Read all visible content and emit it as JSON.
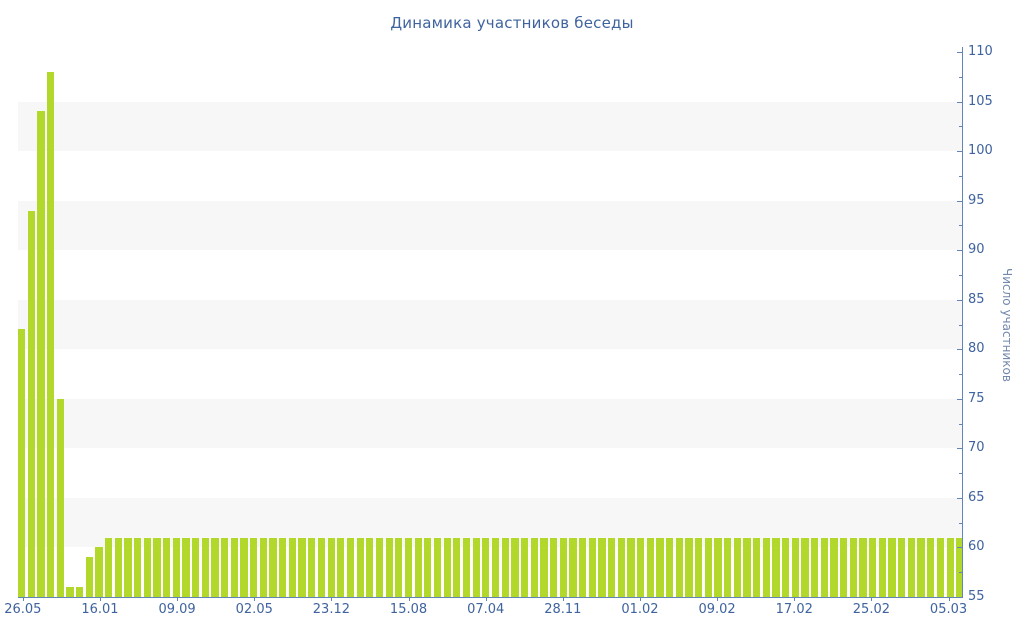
{
  "chart_data": {
    "type": "bar",
    "title": "Динамика участников беседы",
    "ylabel": "Число участников",
    "xlabel": "",
    "ylim": [
      55,
      110
    ],
    "y_tick_step": 5,
    "y_minor_tick_step": 2.5,
    "y_tick_labels": [
      "55",
      "60",
      "65",
      "70",
      "75",
      "80",
      "85",
      "90",
      "95",
      "100",
      "105",
      "110"
    ],
    "y_axis_side": "right",
    "grid": "alternating-horizontal-bands",
    "legend": "none",
    "x_tick_every": 8,
    "x_tick_labels": [
      "26.05",
      "16.01",
      "09.09",
      "02.05",
      "23.12",
      "15.08",
      "07.04",
      "28.11",
      "01.02",
      "09.02",
      "17.02",
      "25.02",
      "05.03"
    ],
    "values": [
      82,
      94,
      104,
      108,
      75,
      56,
      56,
      59,
      60,
      61,
      61,
      61,
      61,
      61,
      61,
      61,
      61,
      61,
      61,
      61,
      61,
      61,
      61,
      61,
      61,
      61,
      61,
      61,
      61,
      61,
      61,
      61,
      61,
      61,
      61,
      61,
      61,
      61,
      61,
      61,
      61,
      61,
      61,
      61,
      61,
      61,
      61,
      61,
      61,
      61,
      61,
      61,
      61,
      61,
      61,
      61,
      61,
      61,
      61,
      61,
      61,
      61,
      61,
      61,
      61,
      61,
      61,
      61,
      61,
      61,
      61,
      61,
      61,
      61,
      61,
      61,
      61,
      61,
      61,
      61,
      61,
      61,
      61,
      61,
      61,
      61,
      61,
      61,
      61,
      61,
      61,
      61,
      61,
      61,
      61,
      61,
      61,
      61
    ],
    "colors": {
      "bar": "#b2d82c",
      "band": "#f7f7f7",
      "axis": "#6285b8",
      "tick_text": "#3f639e",
      "title_text": "#3f639e",
      "ylabel_text": "#7288ad",
      "background": "#ffffff"
    }
  }
}
